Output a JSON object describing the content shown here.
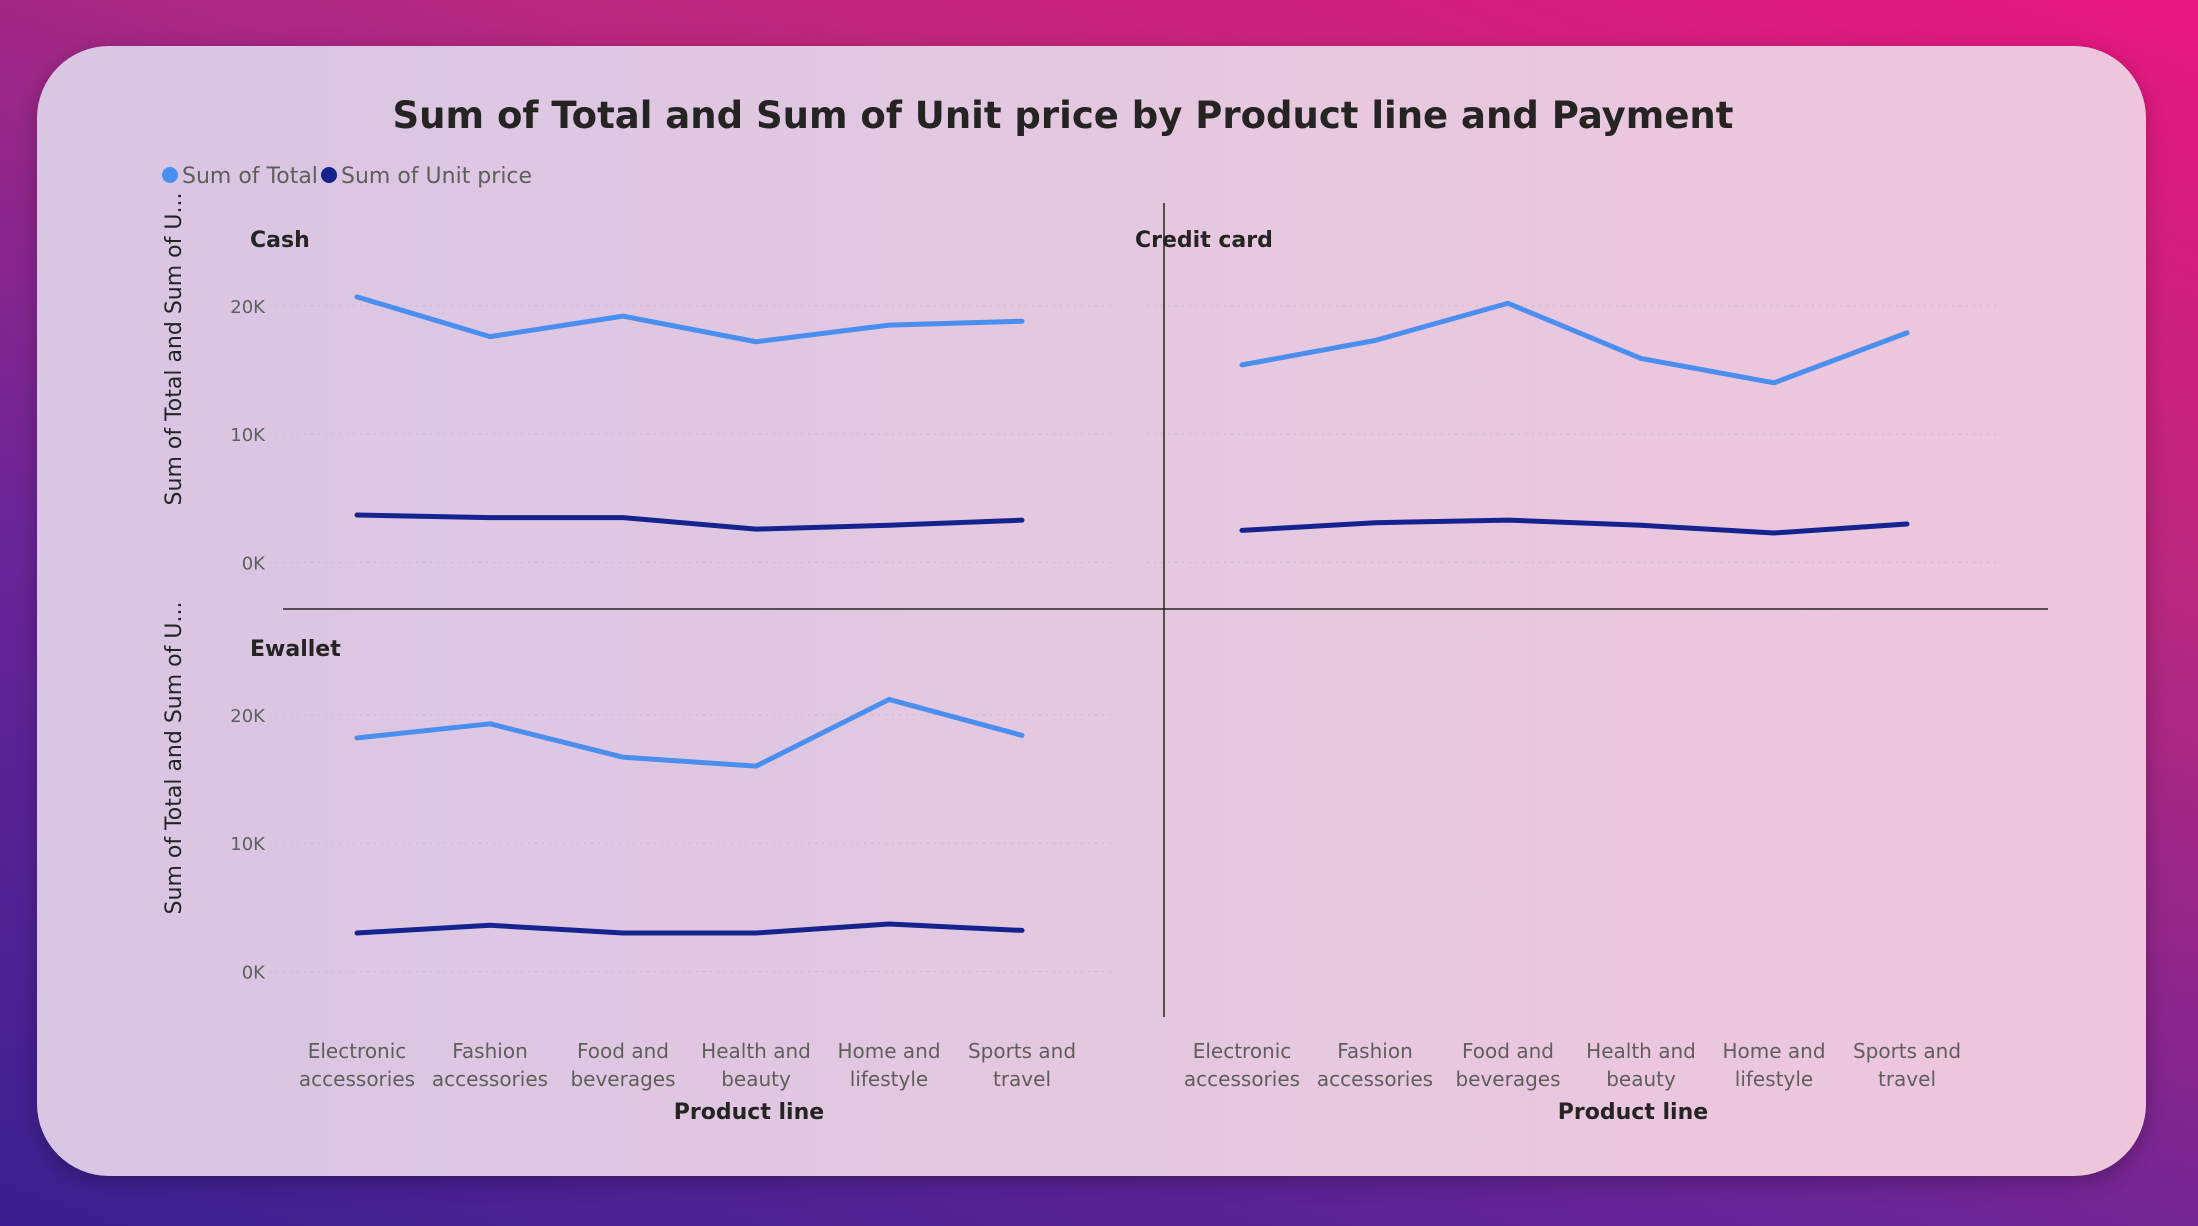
{
  "colors": {
    "total": "#4a8ef0",
    "unit_price": "#15238f",
    "axis": "#252423",
    "grid": "#c9b6cf"
  },
  "chart_data": {
    "type": "line",
    "title": "Sum of Total and Sum of Unit price by Product line and Payment",
    "legend_position": "top-left",
    "grid": true,
    "xlabel": "Product line",
    "ylabel": "Sum of Total and Sum of U...",
    "categories": [
      [
        "Electronic",
        "accessories"
      ],
      [
        "Fashion",
        "accessories"
      ],
      [
        "Food and",
        "beverages"
      ],
      [
        "Health and",
        "beauty"
      ],
      [
        "Home and",
        "lifestyle"
      ],
      [
        "Sports and",
        "travel"
      ]
    ],
    "yticks": [
      {
        "value": 0,
        "label": "0K"
      },
      {
        "value": 10000,
        "label": "10K"
      },
      {
        "value": 20000,
        "label": "20K"
      }
    ],
    "ylim": [
      -3000,
      27000
    ],
    "series_names": [
      "Sum of Total",
      "Sum of Unit price"
    ],
    "panels": [
      {
        "title": "Cash",
        "series": [
          {
            "name": "Sum of Total",
            "values": [
              20700,
              17600,
              19200,
              17200,
              18500,
              18800
            ]
          },
          {
            "name": "Sum of Unit price",
            "values": [
              3700,
              3500,
              3500,
              2600,
              2900,
              3300
            ]
          }
        ]
      },
      {
        "title": "Credit card",
        "series": [
          {
            "name": "Sum of Total",
            "values": [
              15400,
              17300,
              20200,
              15900,
              14000,
              17900
            ]
          },
          {
            "name": "Sum of Unit price",
            "values": [
              2500,
              3100,
              3300,
              2900,
              2300,
              3000
            ]
          }
        ]
      },
      {
        "title": "Ewallet",
        "series": [
          {
            "name": "Sum of Total",
            "values": [
              18200,
              19300,
              16700,
              16000,
              21200,
              18400
            ]
          },
          {
            "name": "Sum of Unit price",
            "values": [
              3000,
              3600,
              3000,
              3000,
              3700,
              3200
            ]
          }
        ]
      }
    ]
  }
}
